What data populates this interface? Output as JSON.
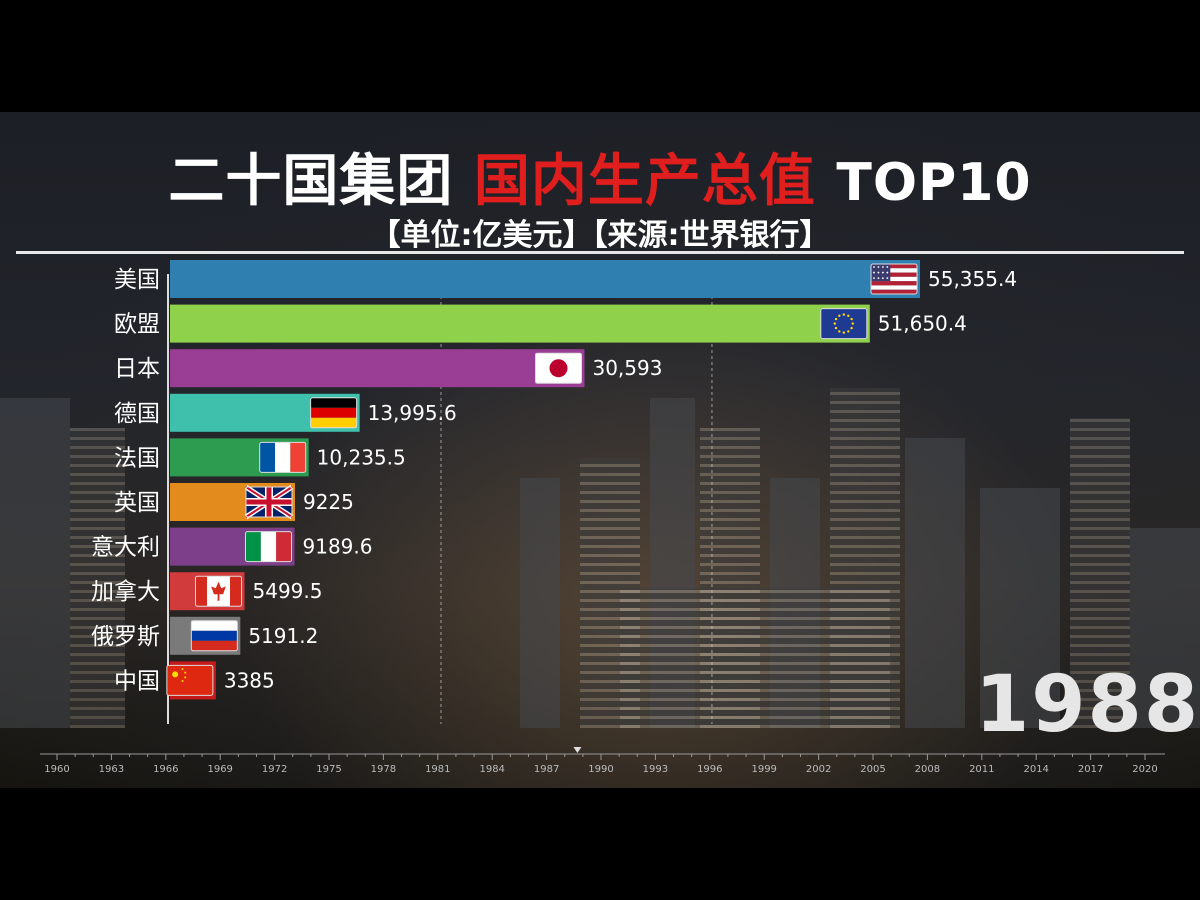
{
  "header": {
    "title_white": "二十国集团",
    "title_red": "国内生产总值",
    "title_suffix": "TOP10",
    "subtitle": "【单位:亿美元】【来源:世界银行】"
  },
  "year": "1988",
  "colors": {
    "title_red": "#e01e1e",
    "background": "#000000"
  },
  "chart_data": {
    "type": "bar",
    "orientation": "horizontal",
    "title": "二十国集团 国内生产总值 TOP10",
    "subtitle": "【单位:亿美元】【来源:世界银行】",
    "categories": [
      "美国",
      "欧盟",
      "日本",
      "德国",
      "法国",
      "英国",
      "意大利",
      "加拿大",
      "俄罗斯",
      "中国"
    ],
    "values": [
      55355.4,
      51650.4,
      30593,
      13995.6,
      10235.5,
      9225,
      9189.6,
      5499.5,
      5191.2,
      3385
    ],
    "value_labels": [
      "55,355.4",
      "51,650.4",
      "30,593",
      "13,995.6",
      "10,235.5",
      "9225",
      "9189.6",
      "5499.5",
      "5191.2",
      "3385"
    ],
    "bar_colors": [
      "#2f7fb0",
      "#8fd14b",
      "#9a3e95",
      "#3fc0ad",
      "#2e9c50",
      "#e38b1c",
      "#7e3f8a",
      "#d13b3b",
      "#7a7a7a",
      "#c41a1a"
    ],
    "flags": [
      "usa-flag",
      "eu-flag",
      "japan-flag",
      "germany-flag",
      "france-flag",
      "uk-flag",
      "italy-flag",
      "canada-flag",
      "russia-flag",
      "china-flag"
    ],
    "xlim": [
      0,
      55355.4
    ],
    "gridlines": [
      20000,
      40000
    ],
    "timeline": {
      "ticks": [
        "1960",
        "1963",
        "1966",
        "1969",
        "1972",
        "1975",
        "1978",
        "1981",
        "1984",
        "1987",
        "1990",
        "1993",
        "1996",
        "1999",
        "2002",
        "2005",
        "2008",
        "2011",
        "2014",
        "2017",
        "2020"
      ],
      "current": 1988.7
    }
  }
}
